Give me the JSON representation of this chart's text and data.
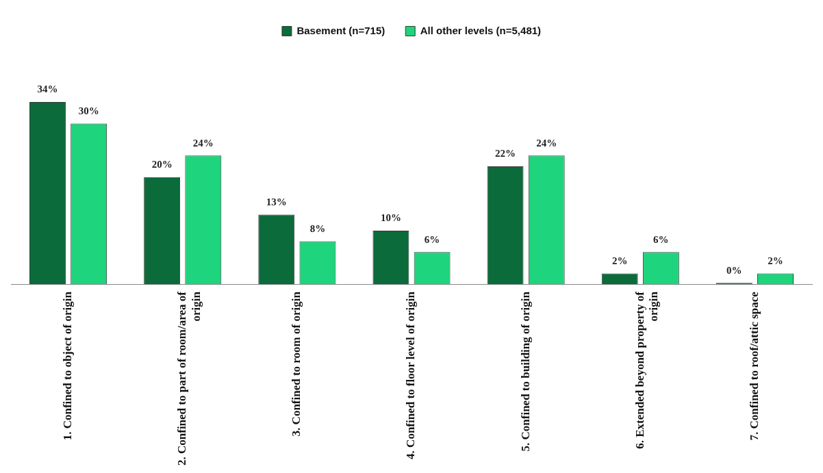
{
  "chart_data": {
    "type": "bar",
    "categories": [
      "1. Confined to object of origin",
      "2. Confined to part of room/area of origin",
      "3. Confined to room of origin",
      "4. Confined to floor level of origin",
      "5. Confined to building of origin",
      "6. Extended beyond property of origin",
      "7. Confined to roof/attic space"
    ],
    "series": [
      {
        "name": "Basement (n=715)",
        "color": "#0b6b3a",
        "values": [
          34,
          20,
          13,
          10,
          22,
          2,
          0
        ],
        "value_labels": [
          "34%",
          "20%",
          "13%",
          "10%",
          "22%",
          "2%",
          "0%"
        ]
      },
      {
        "name": "All other levels (n=5,481)",
        "color": "#1ed47c",
        "values": [
          30,
          24,
          8,
          6,
          24,
          6,
          2
        ],
        "value_labels": [
          "30%",
          "24%",
          "8%",
          "6%",
          "24%",
          "6%",
          "2%"
        ]
      }
    ],
    "legend": "top",
    "grid": false
  }
}
